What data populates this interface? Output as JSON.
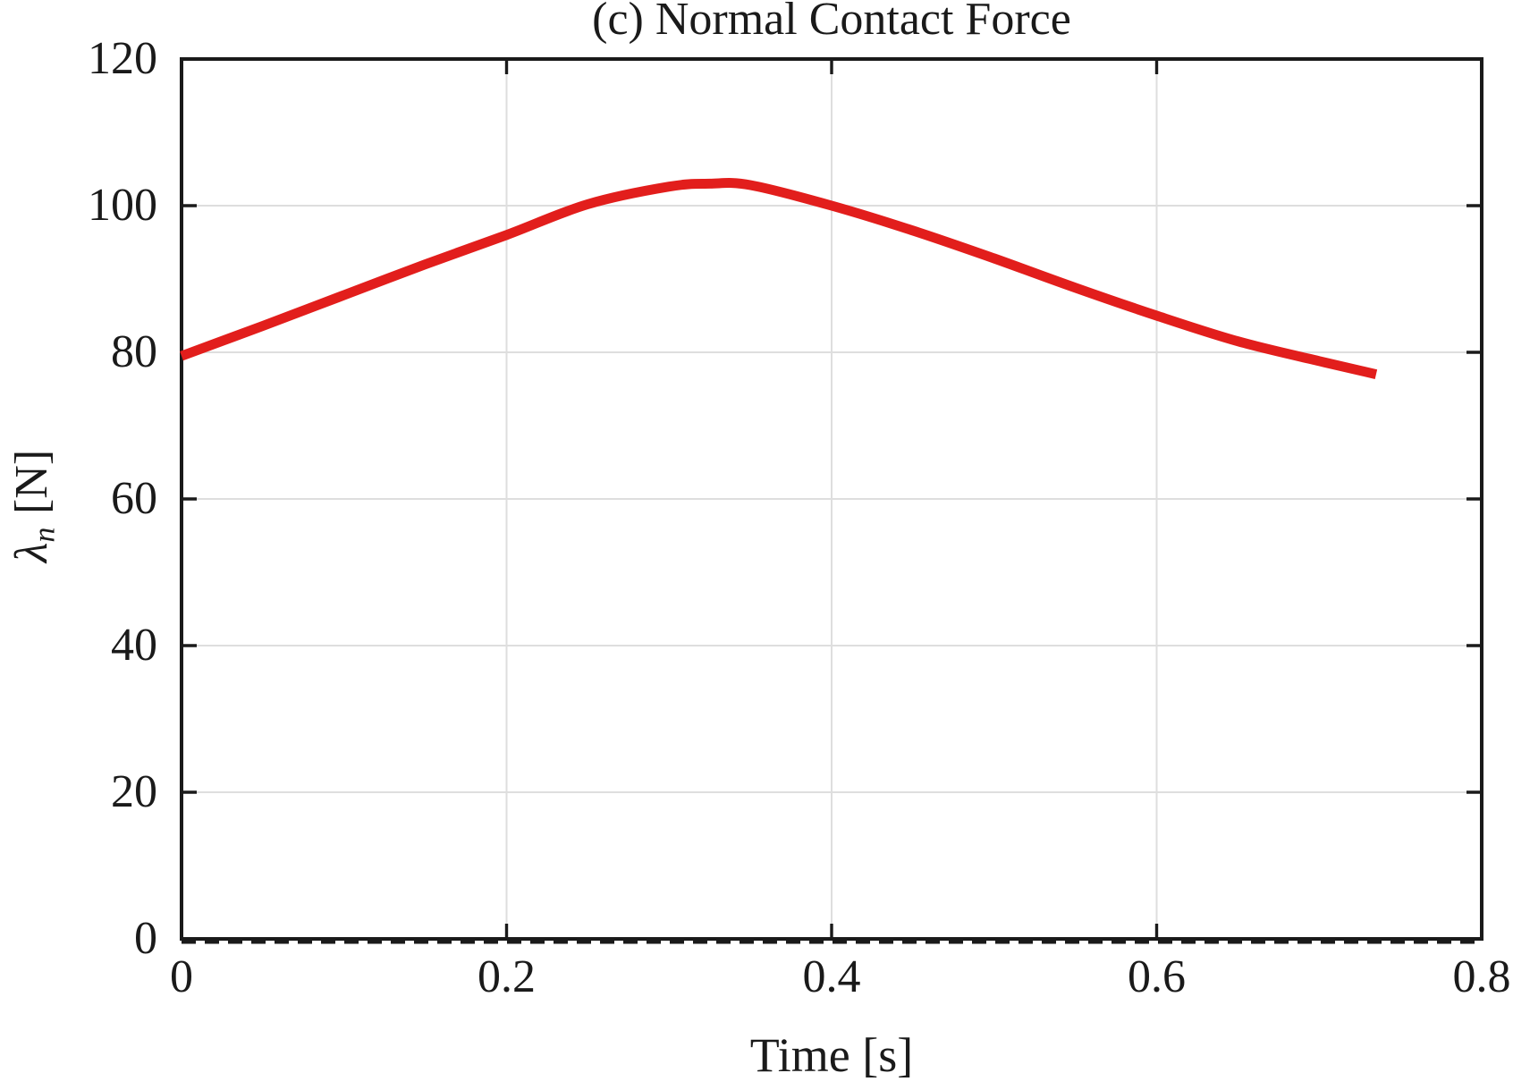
{
  "figure": {
    "title": "(c) Normal Contact Force",
    "xlabel": "Time [s]",
    "ylabel": {
      "symbol": "λ",
      "subscript": "n",
      "unit": "[N]"
    }
  },
  "chart_data": {
    "type": "line",
    "title": "(c) Normal Contact Force",
    "xlabel": "Time [s]",
    "ylabel": "lambda_n [N]",
    "xlim": [
      0,
      0.8
    ],
    "ylim": [
      0,
      120
    ],
    "x_ticks": [
      0,
      0.2,
      0.4,
      0.6,
      0.8
    ],
    "x_tick_labels": [
      "0",
      "0.2",
      "0.4",
      "0.6",
      "0.8"
    ],
    "y_ticks": [
      0,
      20,
      40,
      60,
      80,
      100,
      120
    ],
    "y_tick_labels": [
      "0",
      "20",
      "40",
      "60",
      "80",
      "100",
      "120"
    ],
    "grid": true,
    "legend": false,
    "axis_color": "#1a1a1a",
    "grid_color": "#dedede",
    "background": "#ffffff",
    "series": [
      {
        "name": "normal-contact-force",
        "color": "#e21e1c",
        "style": "solid",
        "line_width": 11,
        "x": [
          0,
          0.05,
          0.1,
          0.15,
          0.2,
          0.25,
          0.3,
          0.325,
          0.35,
          0.4,
          0.45,
          0.5,
          0.55,
          0.6,
          0.65,
          0.7,
          0.735
        ],
        "y": [
          79.5,
          83.6,
          87.8,
          92.0,
          96.0,
          100.2,
          102.6,
          103.0,
          102.8,
          100.0,
          96.6,
          92.8,
          88.8,
          85.0,
          81.5,
          78.8,
          77.0
        ]
      },
      {
        "name": "zero-baseline",
        "color": "#1a1a1a",
        "style": "dashed",
        "line_width": 5,
        "x": [
          0,
          0.8
        ],
        "y": [
          0,
          0
        ]
      }
    ]
  }
}
